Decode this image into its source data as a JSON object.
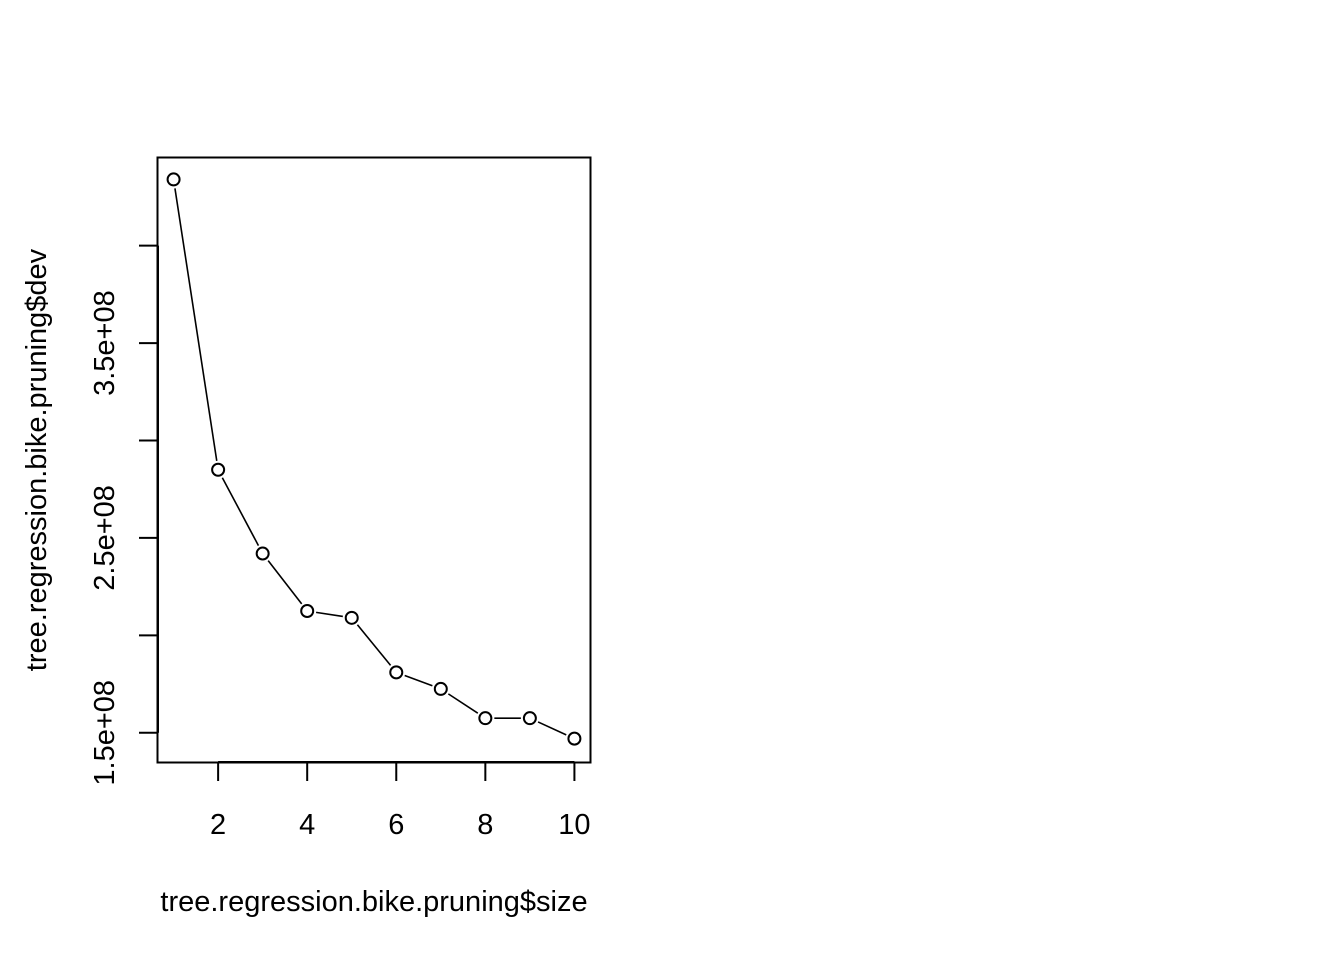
{
  "chart_data": {
    "type": "line",
    "plot_type": "b",
    "title": "",
    "xlabel": "tree.regression.bike.pruning$size",
    "ylabel": "tree.regression.bike.pruning$dev",
    "x": [
      1,
      2,
      3,
      4,
      5,
      6,
      7,
      8,
      9,
      10
    ],
    "y": [
      434000000,
      285000000,
      242000000,
      212500000,
      209000000,
      181000000,
      172500000,
      157500000,
      157500000,
      147000000
    ],
    "xlim": [
      0.65,
      10.35
    ],
    "ylim": [
      135000000,
      445000000
    ],
    "xticks": [
      2,
      4,
      6,
      8,
      10
    ],
    "xtick_labels": [
      "2",
      "4",
      "6",
      "8",
      "10"
    ],
    "yticks": [
      150000000,
      200000000,
      250000000,
      300000000,
      350000000,
      400000000
    ],
    "ytick_labels": [
      "1.5e+08",
      "",
      "2.5e+08",
      "",
      "3.5e+08",
      ""
    ],
    "marker": "open-circle",
    "line_color": "#000000",
    "grid": false,
    "legend": "none"
  }
}
